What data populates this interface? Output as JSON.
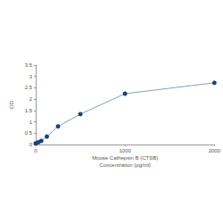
{
  "chart_data": {
    "type": "line",
    "x_label": "Mouse Cathepsin B (CTSB)\nConcentration (pg/ml)",
    "y_label": "OD",
    "x": [
      0,
      31.25,
      62.5,
      125,
      250,
      500,
      1000,
      2000
    ],
    "values": [
      0.05,
      0.1,
      0.16,
      0.35,
      0.8,
      1.34,
      2.24,
      2.72
    ],
    "color": "#1f3f77",
    "marker": "circle",
    "xlim": [
      0,
      2000
    ],
    "xticks": [
      0,
      1000,
      2000
    ],
    "ylim": [
      0,
      3.5
    ],
    "yticks": [
      0,
      0.5,
      1,
      1.5,
      2,
      2.5,
      3,
      3.5
    ],
    "grid": false
  }
}
